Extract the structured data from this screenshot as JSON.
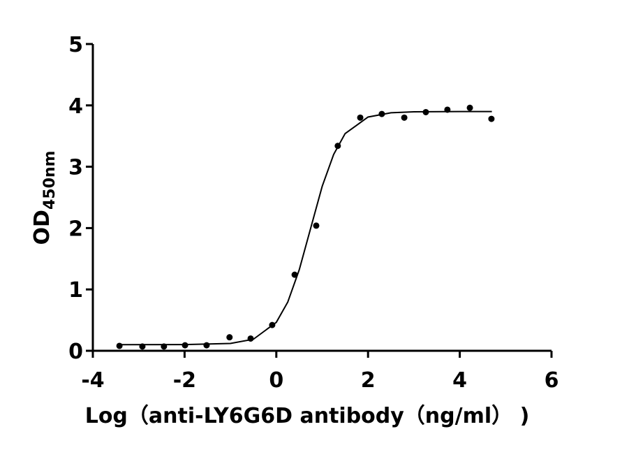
{
  "chart_data": {
    "type": "scatter",
    "y_label": "OD",
    "y_label_sub": "450nm",
    "x_label": "Log（anti-LY6G6D antibody（ng/ml）  )",
    "xlim": [
      -4,
      6
    ],
    "xticks": [
      -4,
      -2,
      0,
      2,
      4,
      6
    ],
    "ylim": [
      0,
      5
    ],
    "yticks": [
      0,
      1,
      2,
      3,
      4,
      5
    ],
    "series": [
      {
        "color": "#000000",
        "x": [
          -3.42,
          -2.92,
          -2.45,
          -1.99,
          -1.52,
          -1.02,
          -0.56,
          -0.09,
          0.4,
          0.87,
          1.34,
          1.83,
          2.3,
          2.79,
          3.26,
          3.73,
          4.22,
          4.69
        ],
        "values": [
          0.08,
          0.07,
          0.07,
          0.09,
          0.09,
          0.22,
          0.2,
          0.42,
          1.24,
          2.04,
          3.34,
          3.8,
          3.86,
          3.8,
          3.89,
          3.93,
          3.96,
          3.78
        ]
      }
    ],
    "fit": {
      "color": "#000000",
      "x": [
        -3.4,
        -2,
        -1,
        -0.5,
        0,
        0.25,
        0.5,
        0.75,
        1,
        1.25,
        1.5,
        2,
        2.5,
        3,
        4,
        4.7
      ],
      "values": [
        0.1,
        0.101,
        0.12,
        0.188,
        0.464,
        0.795,
        1.32,
        2.0,
        2.68,
        3.2,
        3.54,
        3.81,
        3.88,
        3.895,
        3.9,
        3.9
      ]
    }
  }
}
